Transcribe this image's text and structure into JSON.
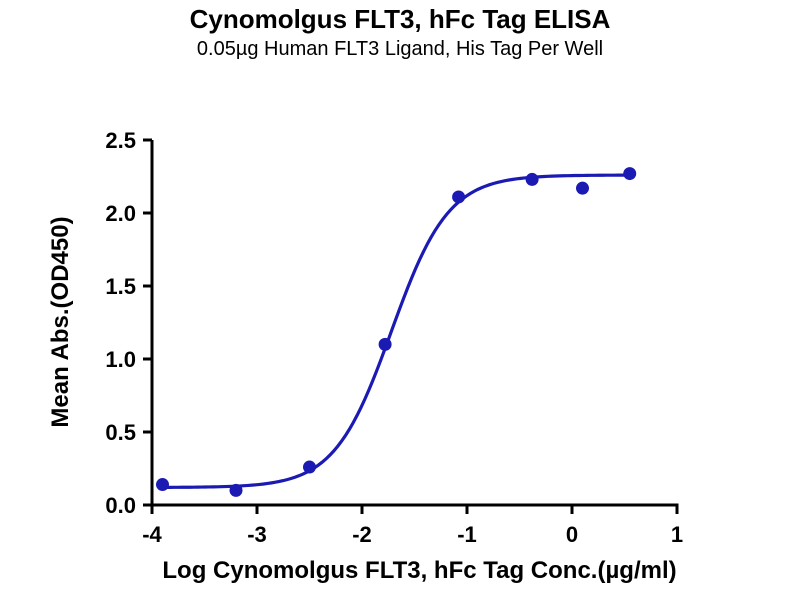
{
  "chart_data": {
    "type": "scatter",
    "title": "Cynomolgus FLT3, hFc Tag ELISA",
    "subtitle": "0.05µg Human FLT3 Ligand, His Tag Per Well",
    "xlabel": "Log Cynomolgus FLT3, hFc Tag Conc.(µg/ml)",
    "ylabel": "Mean Abs.(OD450)",
    "xlim": [
      -4,
      1
    ],
    "ylim": [
      0,
      2.5
    ],
    "x_ticks": [
      {
        "v": -4,
        "label": "-4"
      },
      {
        "v": -3,
        "label": "-3"
      },
      {
        "v": -2,
        "label": "-2"
      },
      {
        "v": -1,
        "label": "-1"
      },
      {
        "v": 0,
        "label": "0"
      },
      {
        "v": 1,
        "label": "1"
      }
    ],
    "y_ticks": [
      {
        "v": 0.0,
        "label": "0.0"
      },
      {
        "v": 0.5,
        "label": "0.5"
      },
      {
        "v": 1.0,
        "label": "1.0"
      },
      {
        "v": 1.5,
        "label": "1.5"
      },
      {
        "v": 2.0,
        "label": "2.0"
      },
      {
        "v": 2.5,
        "label": "2.5"
      }
    ],
    "points": [
      {
        "x": -3.9,
        "y": 0.14
      },
      {
        "x": -3.2,
        "y": 0.1
      },
      {
        "x": -2.5,
        "y": 0.26
      },
      {
        "x": -1.78,
        "y": 1.1
      },
      {
        "x": -1.08,
        "y": 2.11
      },
      {
        "x": -0.38,
        "y": 2.23
      },
      {
        "x": 0.1,
        "y": 2.17
      },
      {
        "x": 0.55,
        "y": 2.27
      }
    ],
    "fit": {
      "bottom": 0.12,
      "top": 2.26,
      "logEC50": -1.72,
      "hill": 1.6,
      "x_start": -3.9,
      "x_end": 0.55
    },
    "colors": {
      "series": "#1b1bb3",
      "axis": "#000000"
    },
    "grid": false,
    "legend": false
  }
}
